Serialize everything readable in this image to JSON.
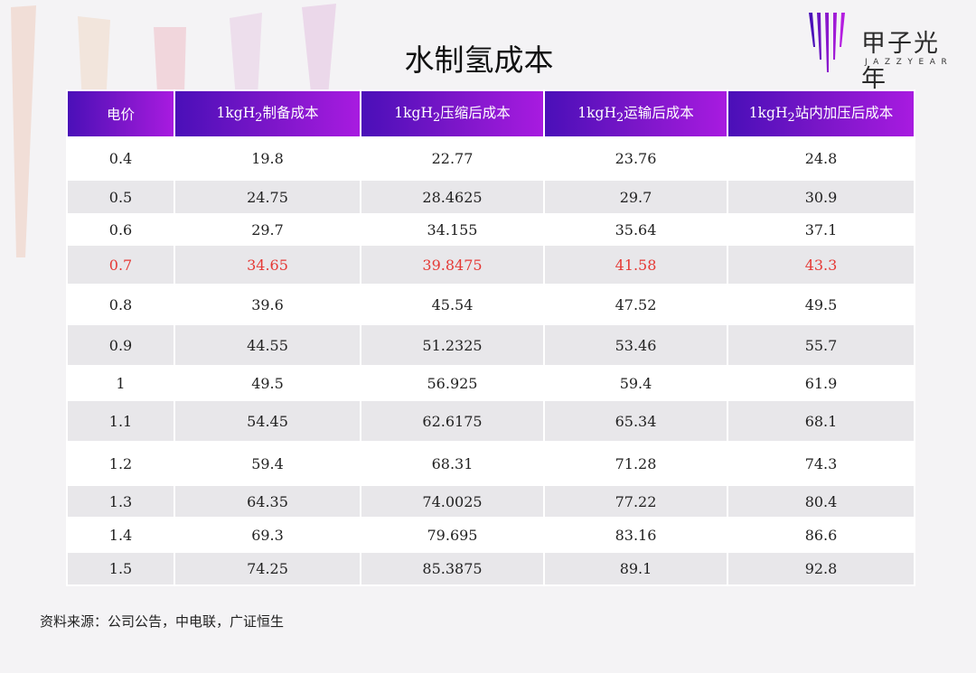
{
  "brand": {
    "name_cn": "甲子光年",
    "name_en": "JAZZYEAR",
    "colors": {
      "purple": "#7a16c8",
      "deep_purple": "#4a0fb8",
      "highlight_red": "#e53935"
    }
  },
  "title": "水制氢成本",
  "table": {
    "columns": [
      {
        "main": "电价",
        "sub": "",
        "rest": ""
      },
      {
        "main": "1kgH",
        "sub": "2",
        "rest": "制备成本"
      },
      {
        "main": "1kgH",
        "sub": "2",
        "rest": "压缩后成本"
      },
      {
        "main": "1kgH",
        "sub": "2",
        "rest": "运输后成本"
      },
      {
        "main": "1kgH",
        "sub": "2",
        "rest": "站内加压后成本"
      }
    ],
    "highlighted_row_index": 3,
    "rows": [
      [
        "0.4",
        "19.8",
        "22.77",
        "23.76",
        "24.8"
      ],
      [
        "0.5",
        "24.75",
        "28.4625",
        "29.7",
        "30.9"
      ],
      [
        "0.6",
        "29.7",
        "34.155",
        "35.64",
        "37.1"
      ],
      [
        "0.7",
        "34.65",
        "39.8475",
        "41.58",
        "43.3"
      ],
      [
        "0.8",
        "39.6",
        "45.54",
        "47.52",
        "49.5"
      ],
      [
        "0.9",
        "44.55",
        "51.2325",
        "53.46",
        "55.7"
      ],
      [
        "1",
        "49.5",
        "56.925",
        "59.4",
        "61.9"
      ],
      [
        "1.1",
        "54.45",
        "62.6175",
        "65.34",
        "68.1"
      ],
      [
        "1.2",
        "59.4",
        "68.31",
        "71.28",
        "74.3"
      ],
      [
        "1.3",
        "64.35",
        "74.0025",
        "77.22",
        "80.4"
      ],
      [
        "1.4",
        "69.3",
        "79.695",
        "83.16",
        "86.6"
      ],
      [
        "1.5",
        "74.25",
        "85.3875",
        "89.1",
        "92.8"
      ]
    ]
  },
  "source": "资料来源：公司公告，中电联，广证恒生"
}
